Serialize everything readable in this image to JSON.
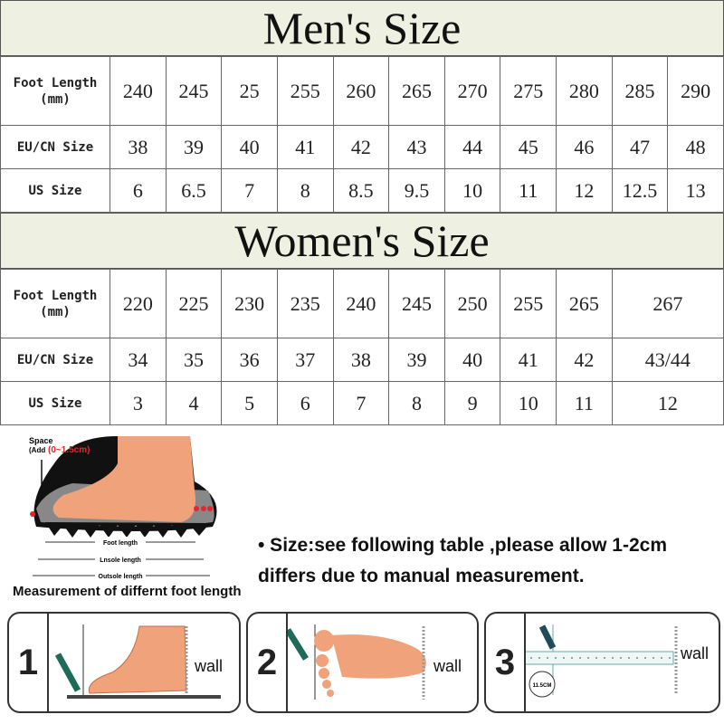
{
  "men": {
    "title": "Men's Size",
    "rows": [
      {
        "label": "Foot Length",
        "sublabel": "(mm)",
        "values": [
          "240",
          "245",
          "25",
          "255",
          "260",
          "265",
          "270",
          "275",
          "280",
          "285",
          "290"
        ]
      },
      {
        "label": "EU/CN Size",
        "values": [
          "38",
          "39",
          "40",
          "41",
          "42",
          "43",
          "44",
          "45",
          "46",
          "47",
          "48"
        ]
      },
      {
        "label": "US Size",
        "values": [
          "6",
          "6.5",
          "7",
          "8",
          "8.5",
          "9.5",
          "10",
          "11",
          "12",
          "12.5",
          "13"
        ]
      }
    ]
  },
  "women": {
    "title": "Women's Size",
    "rows": [
      {
        "label": "Foot Length",
        "sublabel": "(mm)",
        "values": [
          "220",
          "225",
          "230",
          "235",
          "240",
          "245",
          "250",
          "255",
          "265",
          "267"
        ]
      },
      {
        "label": "EU/CN Size",
        "values": [
          "34",
          "35",
          "36",
          "37",
          "38",
          "39",
          "40",
          "41",
          "42",
          "43/44"
        ]
      },
      {
        "label": "US Size",
        "values": [
          "3",
          "4",
          "5",
          "6",
          "7",
          "8",
          "9",
          "10",
          "11",
          "12"
        ]
      }
    ]
  },
  "illustration": {
    "space_label": "Space",
    "space_add": "(Add",
    "space_range": "(0~1.5cm)",
    "foot_length": "Foot length",
    "insole_length": "Lnsole length",
    "outsole_length": "Outsole length",
    "caption": "Measurement of differnt foot length"
  },
  "note": "• Size:see following  table ,please allow 1-2cm differs due to manual measurement.",
  "steps": [
    {
      "number": "1",
      "wall": "wall"
    },
    {
      "number": "2",
      "wall": "wall"
    },
    {
      "number": "3",
      "wall": "wall",
      "ruler_mark": "11.5CM"
    }
  ],
  "colors": {
    "header_bg": "#eef0e2",
    "skin": "#f0a27a",
    "pen": "#1f6b5a",
    "accent_red": "#e0282e"
  }
}
